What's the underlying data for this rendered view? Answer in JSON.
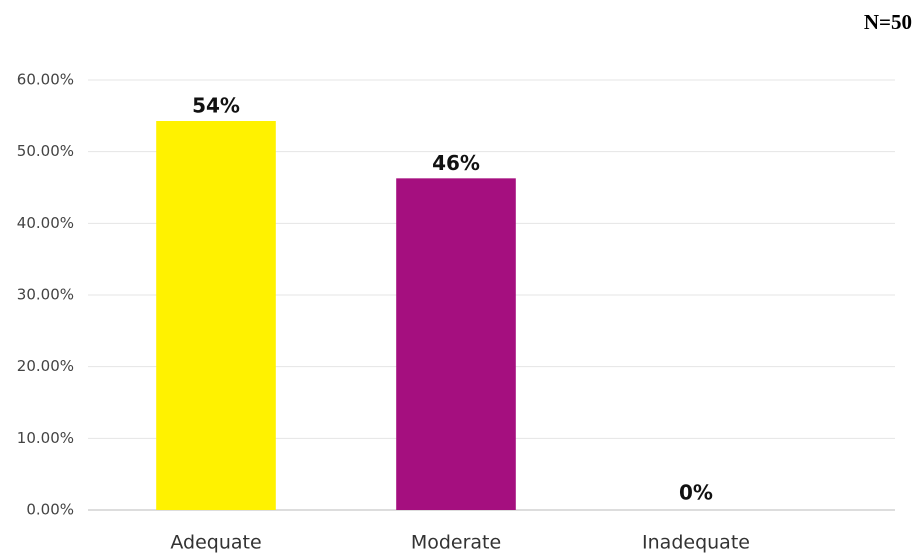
{
  "chart_data": {
    "type": "bar",
    "note": "N=50",
    "categories": [
      "Adequate",
      "Moderate",
      "Inadequate"
    ],
    "values": [
      54,
      46,
      0
    ],
    "value_labels": [
      "54%",
      "46%",
      "0%"
    ],
    "colors": [
      "#fff200",
      "#a50f7f",
      "#4a86d8"
    ],
    "ylim": [
      0,
      60
    ],
    "yticks": [
      {
        "value": 0,
        "label": "0.00%"
      },
      {
        "value": 10,
        "label": "10.00%"
      },
      {
        "value": 20,
        "label": "20.00%"
      },
      {
        "value": 30,
        "label": "30.00%"
      },
      {
        "value": 40,
        "label": "40.00%"
      },
      {
        "value": 50,
        "label": "50.00%"
      },
      {
        "value": 60,
        "label": "60.00%"
      }
    ],
    "grid": true
  }
}
